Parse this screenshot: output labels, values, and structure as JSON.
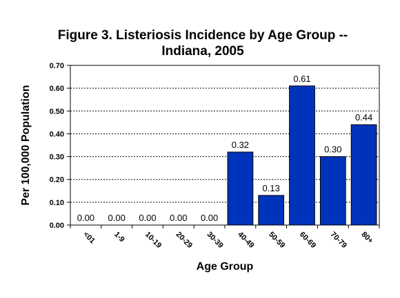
{
  "chart_data": {
    "type": "bar",
    "title_line1": "Figure 3.  Listeriosis Incidence by Age Group --",
    "title_line2": "Indiana, 2005",
    "xlabel": "Age Group",
    "ylabel": "Per 100,000 Population",
    "categories": [
      "<01",
      "1-9",
      "10-19",
      "20-29",
      "30-39",
      "40-49",
      "50-59",
      "60-69",
      "70-79",
      "80+"
    ],
    "values": [
      0.0,
      0.0,
      0.0,
      0.0,
      0.0,
      0.32,
      0.13,
      0.61,
      0.3,
      0.44
    ],
    "value_labels": [
      "0.00",
      "0.00",
      "0.00",
      "0.00",
      "0.00",
      "0.32",
      "0.13",
      "0.61",
      "0.30",
      "0.44"
    ],
    "ylim": [
      0,
      0.7
    ],
    "yticks": [
      0.0,
      0.1,
      0.2,
      0.3,
      0.4,
      0.5,
      0.6,
      0.7
    ],
    "ytick_labels": [
      "0.00",
      "0.10",
      "0.20",
      "0.30",
      "0.40",
      "0.50",
      "0.60",
      "0.70"
    ],
    "grid": true,
    "legend": "none",
    "colors": {
      "bar_fill": "#0033BB",
      "bar_stroke": "#000000",
      "grid": "#000000",
      "axis": "#000000"
    }
  }
}
